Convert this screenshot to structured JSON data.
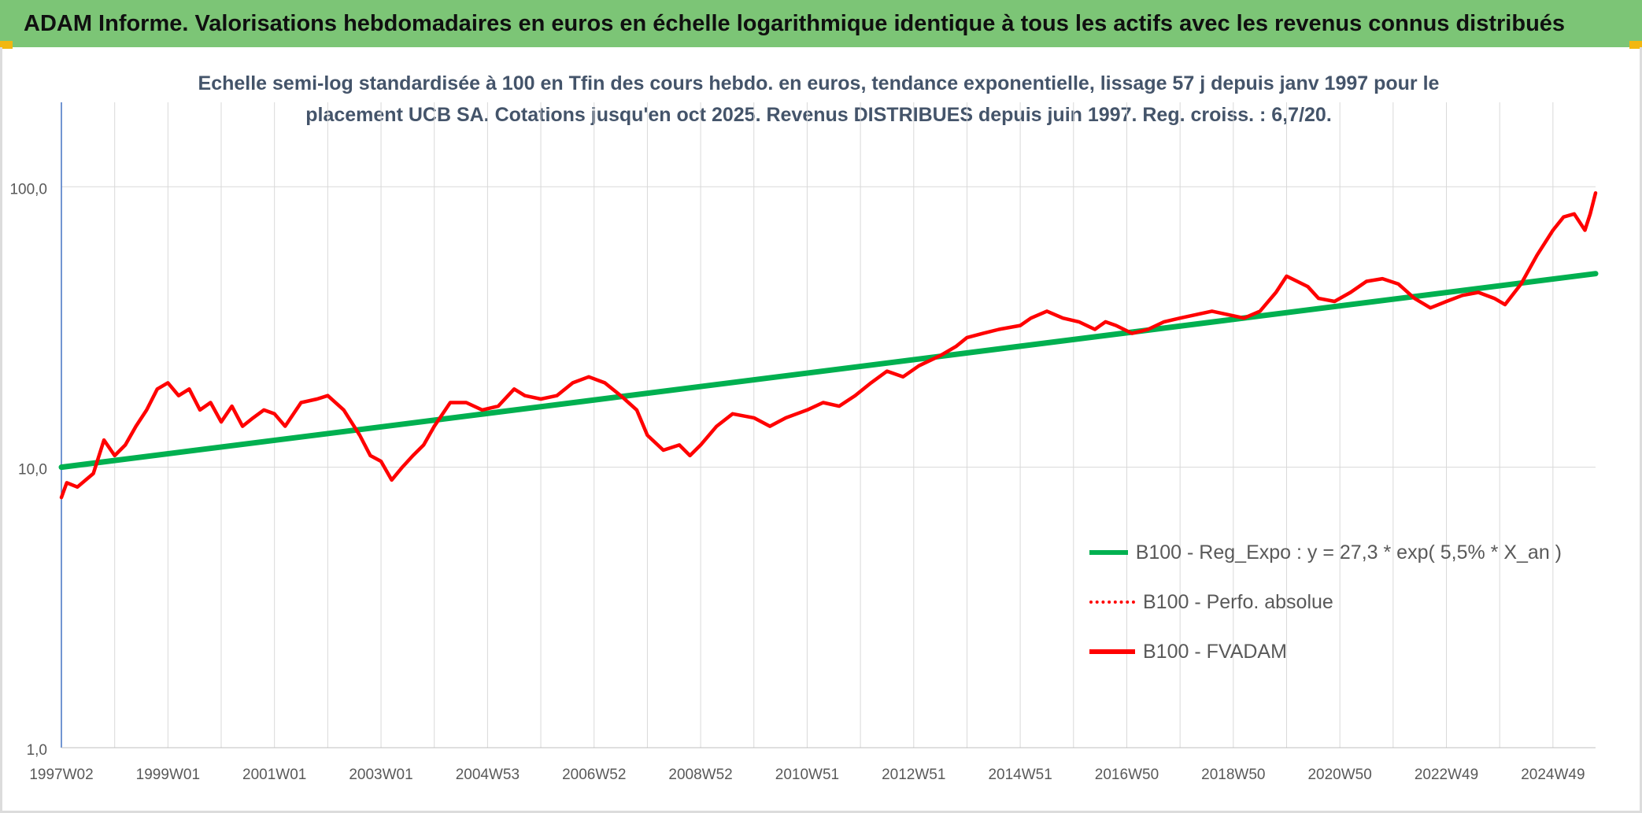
{
  "banner": {
    "title": "ADAM Informe. Valorisations hebdomadaires en euros en échelle logarithmique identique à tous les actifs avec les revenus connus distribués"
  },
  "colors": {
    "banner_bg": "#7cc576",
    "corner_accent": "#f2b711",
    "trend": "#00b050",
    "price": "#ff0000",
    "title_text": "#44546a",
    "grid": "#d9d9d9",
    "axis": "#4472c4"
  },
  "chart_data": {
    "type": "line",
    "title_lines": [
      "Echelle semi-log standardisée à 100 en Tfin des cours hebdo. en euros, tendance exponentielle, lissage 57 j depuis janv 1997 pour le",
      "placement UCB SA. Cotations jusqu'en oct 2025. Revenus DISTRIBUES depuis juin 1997. Reg. croiss. : 6,7/20."
    ],
    "x_range": [
      1997.0,
      2025.8
    ],
    "x_ticks": [
      {
        "label": "1997W02",
        "x": 1997.0
      },
      {
        "label": "1999W01",
        "x": 1999.0
      },
      {
        "label": "2001W01",
        "x": 2001.0
      },
      {
        "label": "2003W01",
        "x": 2003.0
      },
      {
        "label": "2004W53",
        "x": 2005.0
      },
      {
        "label": "2006W52",
        "x": 2007.0
      },
      {
        "label": "2008W52",
        "x": 2009.0
      },
      {
        "label": "2010W51",
        "x": 2011.0
      },
      {
        "label": "2012W51",
        "x": 2013.0
      },
      {
        "label": "2014W51",
        "x": 2015.0
      },
      {
        "label": "2016W50",
        "x": 2017.0
      },
      {
        "label": "2018W50",
        "x": 2019.0
      },
      {
        "label": "2020W50",
        "x": 2021.0
      },
      {
        "label": "2022W49",
        "x": 2023.0
      },
      {
        "label": "2024W49",
        "x": 2025.0
      }
    ],
    "y_scale": "log",
    "y_range": [
      1,
      200
    ],
    "y_ticks": [
      {
        "label": "1,0",
        "y": 1
      },
      {
        "label": "10,0",
        "y": 10
      },
      {
        "label": "100,0",
        "y": 100
      }
    ],
    "grid": true,
    "legend_position": "lower-right",
    "series": [
      {
        "name": "B100 - Reg_Expo : y = 27,3 * exp( 5,5% *  X_an )",
        "style": "solid",
        "color": "#00b050",
        "x": [
          1997.0,
          2025.8
        ],
        "y": [
          10.0,
          49.0
        ]
      },
      {
        "name": "B100 - Perfo. absolue",
        "style": "dotted",
        "color": "#ff0000",
        "x": [],
        "y": []
      },
      {
        "name": "B100 - FVADAM",
        "style": "solid",
        "color": "#ff0000",
        "x": [
          1997.0,
          1997.1,
          1997.3,
          1997.6,
          1997.8,
          1998.0,
          1998.2,
          1998.4,
          1998.6,
          1998.8,
          1999.0,
          1999.2,
          1999.4,
          1999.6,
          1999.8,
          2000.0,
          2000.2,
          2000.4,
          2000.6,
          2000.8,
          2001.0,
          2001.2,
          2001.5,
          2001.8,
          2002.0,
          2002.3,
          2002.6,
          2002.8,
          2003.0,
          2003.2,
          2003.4,
          2003.6,
          2003.8,
          2004.0,
          2004.3,
          2004.6,
          2004.9,
          2005.2,
          2005.5,
          2005.7,
          2006.0,
          2006.3,
          2006.6,
          2006.9,
          2007.2,
          2007.5,
          2007.8,
          2008.0,
          2008.3,
          2008.6,
          2008.8,
          2009.0,
          2009.3,
          2009.6,
          2010.0,
          2010.3,
          2010.6,
          2011.0,
          2011.3,
          2011.6,
          2011.9,
          2012.2,
          2012.5,
          2012.8,
          2013.1,
          2013.5,
          2013.8,
          2014.0,
          2014.3,
          2014.6,
          2015.0,
          2015.2,
          2015.5,
          2015.8,
          2016.1,
          2016.4,
          2016.6,
          2016.8,
          2017.1,
          2017.4,
          2017.7,
          2018.0,
          2018.3,
          2018.6,
          2018.9,
          2019.2,
          2019.5,
          2019.8,
          2020.0,
          2020.2,
          2020.4,
          2020.6,
          2020.9,
          2021.2,
          2021.5,
          2021.8,
          2022.1,
          2022.4,
          2022.7,
          2023.0,
          2023.3,
          2023.6,
          2023.9,
          2024.1,
          2024.4,
          2024.7,
          2025.0,
          2025.2,
          2025.4,
          2025.6,
          2025.7,
          2025.8
        ],
        "y": [
          7.8,
          8.8,
          8.5,
          9.5,
          12.5,
          11.0,
          12.0,
          14.0,
          16.0,
          19.0,
          20.0,
          18.0,
          19.0,
          16.0,
          17.0,
          14.5,
          16.5,
          14.0,
          15.0,
          16.0,
          15.5,
          14.0,
          17.0,
          17.5,
          18.0,
          16.0,
          13.0,
          11.0,
          10.5,
          9.0,
          10.0,
          11.0,
          12.0,
          14.0,
          17.0,
          17.0,
          16.0,
          16.5,
          19.0,
          18.0,
          17.5,
          18.0,
          20.0,
          21.0,
          20.0,
          18.0,
          16.0,
          13.0,
          11.5,
          12.0,
          11.0,
          12.0,
          14.0,
          15.5,
          15.0,
          14.0,
          15.0,
          16.0,
          17.0,
          16.5,
          18.0,
          20.0,
          22.0,
          21.0,
          23.0,
          25.0,
          27.0,
          29.0,
          30.0,
          31.0,
          32.0,
          34.0,
          36.0,
          34.0,
          33.0,
          31.0,
          33.0,
          32.0,
          30.0,
          31.0,
          33.0,
          34.0,
          35.0,
          36.0,
          35.0,
          34.0,
          36.0,
          42.0,
          48.0,
          46.0,
          44.0,
          40.0,
          39.0,
          42.0,
          46.0,
          47.0,
          45.0,
          40.0,
          37.0,
          39.0,
          41.0,
          42.0,
          40.0,
          38.0,
          45.0,
          57.0,
          70.0,
          78.0,
          80.0,
          70.0,
          80.0,
          95.0
        ]
      }
    ]
  }
}
